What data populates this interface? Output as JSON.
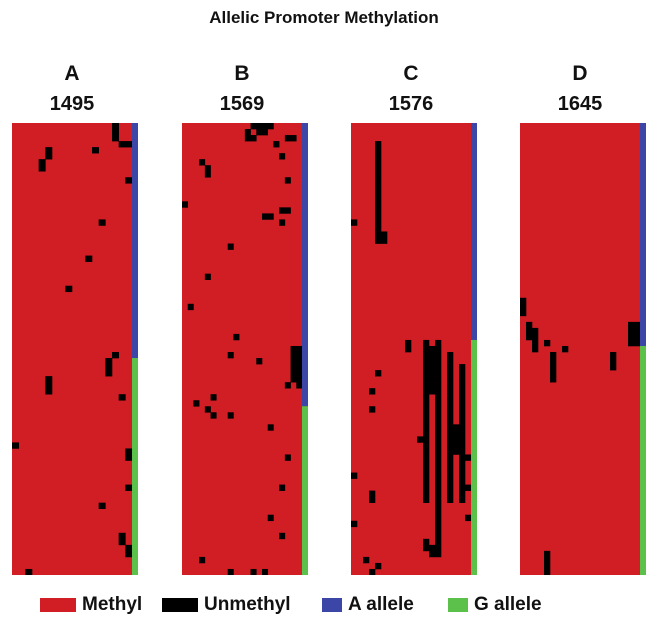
{
  "chart_data": {
    "type": "heatmap",
    "title": "Allelic Promoter Methylation",
    "colors": {
      "methyl": "#d01e24",
      "unmethyl": "#000000",
      "a_allele": "#3b46a6",
      "g_allele": "#5cc14a"
    },
    "legend": [
      {
        "label": "Methyl",
        "color": "#d01e24"
      },
      {
        "label": "Unmethyl",
        "color": "#000000"
      },
      {
        "label": "A allele",
        "color": "#3b46a6"
      },
      {
        "label": "G allele",
        "color": "#5cc14a"
      }
    ],
    "panels": [
      {
        "letter": "A",
        "sample": "1495",
        "n_rows": 75,
        "n_cols": 18,
        "a_allele_rows": 39,
        "unmethyl_cells": [
          [
            0,
            15
          ],
          [
            1,
            15
          ],
          [
            2,
            15
          ],
          [
            3,
            16
          ],
          [
            3,
            17
          ],
          [
            4,
            12
          ],
          [
            4,
            5
          ],
          [
            5,
            5
          ],
          [
            6,
            4
          ],
          [
            7,
            4
          ],
          [
            9,
            17
          ],
          [
            22,
            11
          ],
          [
            27,
            8
          ],
          [
            38,
            15
          ],
          [
            39,
            14
          ],
          [
            40,
            14
          ],
          [
            41,
            14
          ],
          [
            42,
            5
          ],
          [
            43,
            5
          ],
          [
            44,
            5
          ],
          [
            45,
            16
          ],
          [
            53,
            0
          ],
          [
            54,
            17
          ],
          [
            55,
            17
          ],
          [
            60,
            17
          ],
          [
            63,
            13
          ],
          [
            68,
            16
          ],
          [
            69,
            16
          ],
          [
            70,
            17
          ],
          [
            71,
            17
          ],
          [
            74,
            2
          ],
          [
            16,
            13
          ]
        ]
      },
      {
        "letter": "B",
        "sample": "1569",
        "n_rows": 75,
        "n_cols": 21,
        "a_allele_rows": 47,
        "unmethyl_cells": [
          [
            0,
            12
          ],
          [
            0,
            13
          ],
          [
            0,
            14
          ],
          [
            0,
            15
          ],
          [
            1,
            11
          ],
          [
            1,
            13
          ],
          [
            1,
            14
          ],
          [
            2,
            11
          ],
          [
            2,
            12
          ],
          [
            3,
            16
          ],
          [
            5,
            17
          ],
          [
            6,
            3
          ],
          [
            7,
            4
          ],
          [
            8,
            4
          ],
          [
            9,
            18
          ],
          [
            13,
            0
          ],
          [
            14,
            17
          ],
          [
            14,
            18
          ],
          [
            15,
            14
          ],
          [
            15,
            15
          ],
          [
            16,
            17
          ],
          [
            20,
            8
          ],
          [
            25,
            4
          ],
          [
            30,
            1
          ],
          [
            35,
            9
          ],
          [
            38,
            8
          ],
          [
            39,
            13
          ],
          [
            37,
            19
          ],
          [
            37,
            20
          ],
          [
            38,
            19
          ],
          [
            38,
            20
          ],
          [
            39,
            19
          ],
          [
            39,
            20
          ],
          [
            40,
            19
          ],
          [
            40,
            20
          ],
          [
            41,
            19
          ],
          [
            41,
            20
          ],
          [
            42,
            19
          ],
          [
            42,
            20
          ],
          [
            43,
            18
          ],
          [
            43,
            20
          ],
          [
            45,
            5
          ],
          [
            46,
            2
          ],
          [
            47,
            4
          ],
          [
            48,
            5
          ],
          [
            48,
            8
          ],
          [
            50,
            15
          ],
          [
            55,
            18
          ],
          [
            60,
            17
          ],
          [
            65,
            15
          ],
          [
            68,
            17
          ],
          [
            72,
            3
          ],
          [
            74,
            8
          ],
          [
            74,
            12
          ],
          [
            74,
            14
          ],
          [
            2,
            18
          ],
          [
            2,
            19
          ]
        ]
      },
      {
        "letter": "C",
        "sample": "1576",
        "n_rows": 75,
        "n_cols": 20,
        "a_allele_rows": 36,
        "unmethyl_cells": [
          [
            3,
            4
          ],
          [
            4,
            4
          ],
          [
            5,
            4
          ],
          [
            6,
            4
          ],
          [
            7,
            4
          ],
          [
            8,
            4
          ],
          [
            9,
            4
          ],
          [
            10,
            4
          ],
          [
            11,
            4
          ],
          [
            12,
            4
          ],
          [
            13,
            4
          ],
          [
            14,
            4
          ],
          [
            15,
            4
          ],
          [
            16,
            4
          ],
          [
            17,
            4
          ],
          [
            18,
            4
          ],
          [
            19,
            4
          ],
          [
            18,
            5
          ],
          [
            19,
            5
          ],
          [
            16,
            0
          ],
          [
            36,
            12
          ],
          [
            37,
            12
          ],
          [
            37,
            13
          ],
          [
            38,
            12
          ],
          [
            38,
            13
          ],
          [
            39,
            12
          ],
          [
            39,
            13
          ],
          [
            40,
            12
          ],
          [
            40,
            13
          ],
          [
            41,
            12
          ],
          [
            41,
            13
          ],
          [
            42,
            12
          ],
          [
            42,
            13
          ],
          [
            43,
            12
          ],
          [
            43,
            13
          ],
          [
            44,
            12
          ],
          [
            44,
            13
          ],
          [
            36,
            14
          ],
          [
            37,
            14
          ],
          [
            38,
            14
          ],
          [
            39,
            14
          ],
          [
            40,
            14
          ],
          [
            41,
            14
          ],
          [
            42,
            14
          ],
          [
            43,
            14
          ],
          [
            44,
            14
          ],
          [
            45,
            14
          ],
          [
            46,
            14
          ],
          [
            47,
            14
          ],
          [
            48,
            14
          ],
          [
            49,
            14
          ],
          [
            50,
            14
          ],
          [
            51,
            14
          ],
          [
            52,
            14
          ],
          [
            53,
            14
          ],
          [
            54,
            14
          ],
          [
            55,
            14
          ],
          [
            56,
            14
          ],
          [
            57,
            14
          ],
          [
            58,
            14
          ],
          [
            59,
            14
          ],
          [
            60,
            14
          ],
          [
            61,
            14
          ],
          [
            62,
            14
          ],
          [
            63,
            14
          ],
          [
            64,
            14
          ],
          [
            65,
            14
          ],
          [
            66,
            14
          ],
          [
            67,
            14
          ],
          [
            68,
            14
          ],
          [
            69,
            14
          ],
          [
            70,
            14
          ],
          [
            71,
            14
          ],
          [
            45,
            12
          ],
          [
            46,
            12
          ],
          [
            47,
            12
          ],
          [
            48,
            12
          ],
          [
            49,
            12
          ],
          [
            50,
            12
          ],
          [
            51,
            12
          ],
          [
            52,
            12
          ],
          [
            53,
            12
          ],
          [
            54,
            12
          ],
          [
            55,
            12
          ],
          [
            56,
            12
          ],
          [
            57,
            12
          ],
          [
            58,
            12
          ],
          [
            59,
            12
          ],
          [
            60,
            12
          ],
          [
            61,
            12
          ],
          [
            62,
            12
          ],
          [
            38,
            16
          ],
          [
            39,
            16
          ],
          [
            40,
            16
          ],
          [
            41,
            16
          ],
          [
            42,
            16
          ],
          [
            43,
            16
          ],
          [
            44,
            16
          ],
          [
            45,
            16
          ],
          [
            46,
            16
          ],
          [
            47,
            16
          ],
          [
            48,
            16
          ],
          [
            49,
            16
          ],
          [
            50,
            16
          ],
          [
            51,
            16
          ],
          [
            52,
            16
          ],
          [
            53,
            16
          ],
          [
            54,
            16
          ],
          [
            55,
            16
          ],
          [
            56,
            16
          ],
          [
            57,
            16
          ],
          [
            58,
            16
          ],
          [
            59,
            16
          ],
          [
            60,
            16
          ],
          [
            61,
            16
          ],
          [
            62,
            16
          ],
          [
            40,
            18
          ],
          [
            41,
            18
          ],
          [
            42,
            18
          ],
          [
            43,
            18
          ],
          [
            44,
            18
          ],
          [
            45,
            18
          ],
          [
            46,
            18
          ],
          [
            47,
            18
          ],
          [
            48,
            18
          ],
          [
            49,
            18
          ],
          [
            50,
            18
          ],
          [
            51,
            18
          ],
          [
            52,
            18
          ],
          [
            53,
            18
          ],
          [
            54,
            18
          ],
          [
            55,
            18
          ],
          [
            56,
            18
          ],
          [
            57,
            18
          ],
          [
            58,
            18
          ],
          [
            59,
            18
          ],
          [
            60,
            18
          ],
          [
            61,
            18
          ],
          [
            62,
            18
          ],
          [
            50,
            17
          ],
          [
            51,
            17
          ],
          [
            52,
            17
          ],
          [
            53,
            17
          ],
          [
            54,
            17
          ],
          [
            36,
            9
          ],
          [
            37,
            9
          ],
          [
            41,
            4
          ],
          [
            44,
            3
          ],
          [
            47,
            3
          ],
          [
            52,
            11
          ],
          [
            58,
            0
          ],
          [
            61,
            3
          ],
          [
            62,
            3
          ],
          [
            66,
            0
          ],
          [
            69,
            12
          ],
          [
            70,
            12
          ],
          [
            70,
            13
          ],
          [
            71,
            13
          ],
          [
            72,
            2
          ],
          [
            73,
            4
          ],
          [
            74,
            3
          ],
          [
            55,
            19
          ],
          [
            60,
            19
          ],
          [
            65,
            19
          ]
        ]
      },
      {
        "letter": "D",
        "sample": "1645",
        "n_rows": 75,
        "n_cols": 20,
        "a_allele_rows": 37,
        "unmethyl_cells": [
          [
            29,
            0
          ],
          [
            30,
            0
          ],
          [
            31,
            0
          ],
          [
            33,
            1
          ],
          [
            34,
            1
          ],
          [
            35,
            1
          ],
          [
            34,
            2
          ],
          [
            35,
            2
          ],
          [
            36,
            2
          ],
          [
            37,
            2
          ],
          [
            36,
            4
          ],
          [
            38,
            5
          ],
          [
            39,
            5
          ],
          [
            40,
            5
          ],
          [
            41,
            5
          ],
          [
            42,
            5
          ],
          [
            37,
            7
          ],
          [
            38,
            15
          ],
          [
            39,
            15
          ],
          [
            40,
            15
          ],
          [
            33,
            18
          ],
          [
            33,
            19
          ],
          [
            34,
            18
          ],
          [
            34,
            19
          ],
          [
            35,
            18
          ],
          [
            35,
            19
          ],
          [
            36,
            18
          ],
          [
            36,
            19
          ],
          [
            71,
            4
          ],
          [
            72,
            4
          ],
          [
            73,
            4
          ],
          [
            74,
            4
          ]
        ]
      }
    ]
  }
}
